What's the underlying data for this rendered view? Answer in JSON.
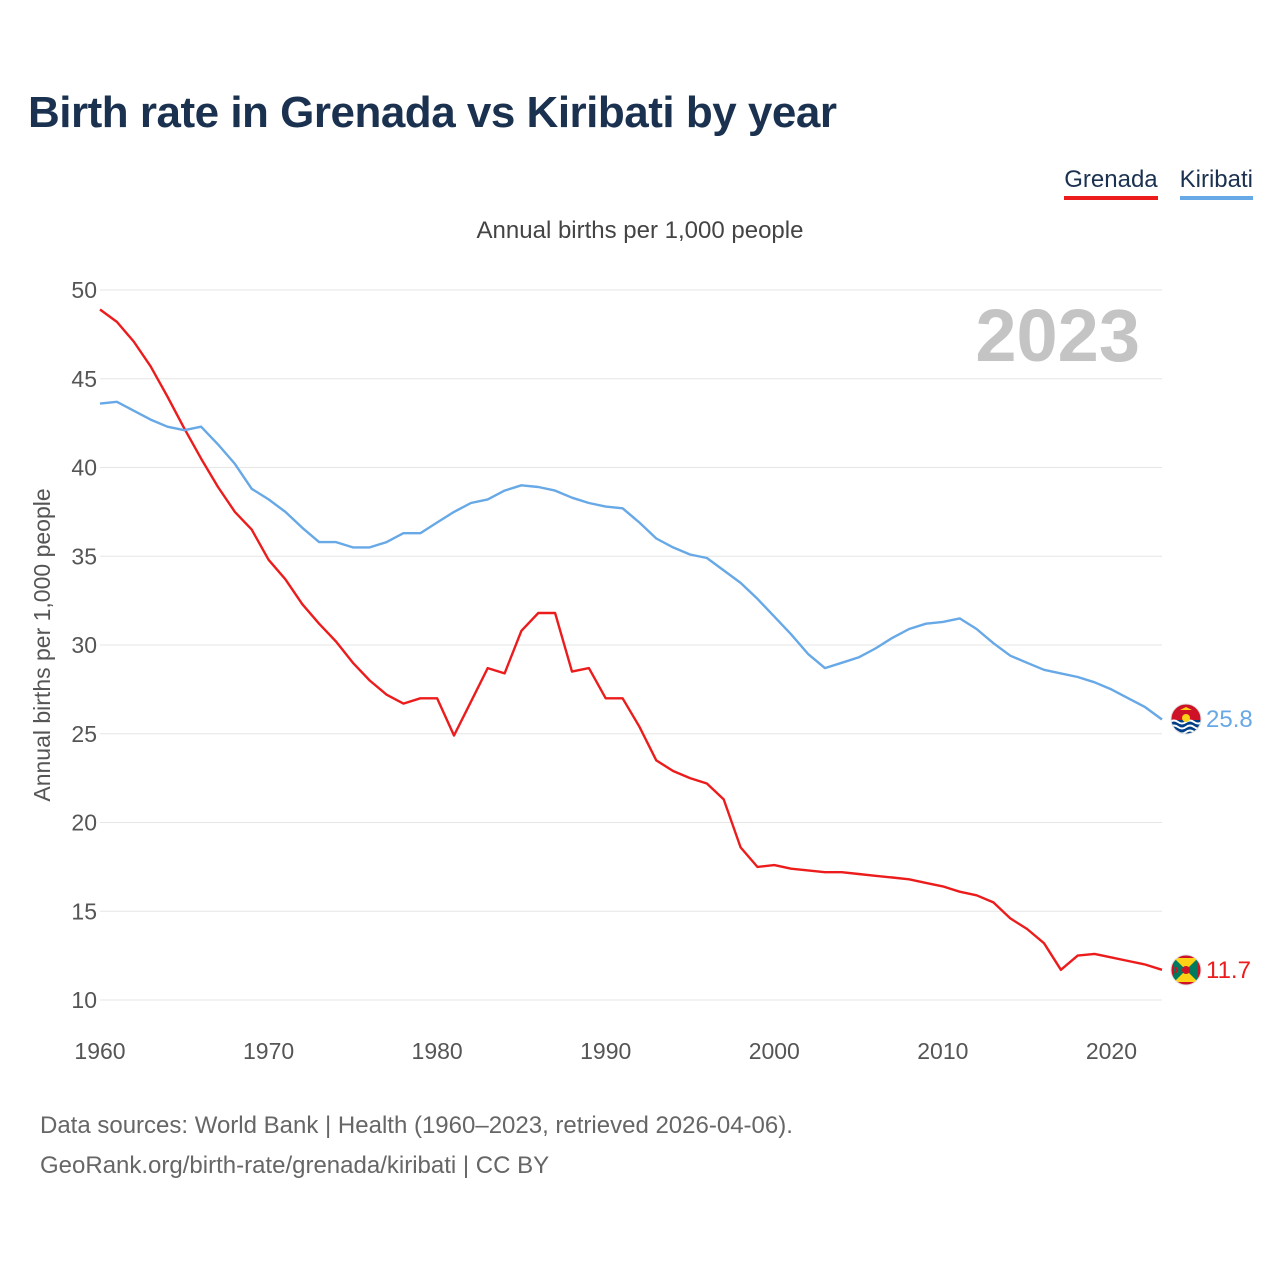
{
  "header": {
    "title": "Birth rate in Grenada vs Kiribati by year",
    "subtitle": "Annual births per 1,000 people"
  },
  "legend": {
    "items": [
      {
        "label": "Grenada",
        "color": "#ec1c1c"
      },
      {
        "label": "Kiribati",
        "color": "#67a8e6"
      }
    ]
  },
  "footer": {
    "line1": "Data sources: World Bank | Health (1960–2023, retrieved 2026-04-06).",
    "line2": "GeoRank.org/birth-rate/grenada/kiribati | CC BY"
  },
  "chart_data": {
    "type": "line",
    "title": "Birth rate in Grenada vs Kiribati by year",
    "ylabel": "Annual births per 1,000 people",
    "xlabel": "",
    "year_watermark": "2023",
    "xlim": [
      1960,
      2023
    ],
    "ylim": [
      10,
      50
    ],
    "x_ticks": [
      1960,
      1970,
      1980,
      1990,
      2000,
      2010,
      2020
    ],
    "y_ticks": [
      10,
      15,
      20,
      25,
      30,
      35,
      40,
      45,
      50
    ],
    "grid": true,
    "legend_position": "top-right",
    "x": [
      1960,
      1961,
      1962,
      1963,
      1964,
      1965,
      1966,
      1967,
      1968,
      1969,
      1970,
      1971,
      1972,
      1973,
      1974,
      1975,
      1976,
      1977,
      1978,
      1979,
      1980,
      1981,
      1982,
      1983,
      1984,
      1985,
      1986,
      1987,
      1988,
      1989,
      1990,
      1991,
      1992,
      1993,
      1994,
      1995,
      1996,
      1997,
      1998,
      1999,
      2000,
      2001,
      2002,
      2003,
      2004,
      2005,
      2006,
      2007,
      2008,
      2009,
      2010,
      2011,
      2012,
      2013,
      2014,
      2015,
      2016,
      2017,
      2018,
      2019,
      2020,
      2021,
      2022,
      2023
    ],
    "series": [
      {
        "name": "Grenada",
        "color": "#ec1c1c",
        "end_label": "11.7",
        "values": [
          48.9,
          48.2,
          47.1,
          45.7,
          44.0,
          42.2,
          40.5,
          38.9,
          37.5,
          36.5,
          34.8,
          33.7,
          32.3,
          31.2,
          30.2,
          29.0,
          28.0,
          27.2,
          26.7,
          27.0,
          27.0,
          24.9,
          26.8,
          28.7,
          28.4,
          30.8,
          31.8,
          31.8,
          28.5,
          28.7,
          27.0,
          27.0,
          25.4,
          23.5,
          22.9,
          22.5,
          22.2,
          21.3,
          18.6,
          17.5,
          17.6,
          17.4,
          17.3,
          17.2,
          17.2,
          17.1,
          17.0,
          16.9,
          16.8,
          16.6,
          16.4,
          16.1,
          15.9,
          15.5,
          14.6,
          14.0,
          13.2,
          11.7,
          12.5,
          12.6,
          12.4,
          12.2,
          12.0,
          11.7
        ]
      },
      {
        "name": "Kiribati",
        "color": "#67a8e6",
        "end_label": "25.8",
        "values": [
          43.6,
          43.7,
          43.2,
          42.7,
          42.3,
          42.1,
          42.3,
          41.3,
          40.2,
          38.8,
          38.2,
          37.5,
          36.6,
          35.8,
          35.8,
          35.5,
          35.5,
          35.8,
          36.3,
          36.3,
          36.9,
          37.5,
          38.0,
          38.2,
          38.7,
          39.0,
          38.9,
          38.7,
          38.3,
          38.0,
          37.8,
          37.7,
          36.9,
          36.0,
          35.5,
          35.1,
          34.9,
          34.2,
          33.5,
          32.6,
          31.6,
          30.6,
          29.5,
          28.7,
          29.0,
          29.3,
          29.8,
          30.4,
          30.9,
          31.2,
          31.3,
          31.5,
          30.9,
          30.1,
          29.4,
          29.0,
          28.6,
          28.4,
          28.2,
          27.9,
          27.5,
          27.0,
          26.5,
          25.8
        ]
      }
    ]
  }
}
